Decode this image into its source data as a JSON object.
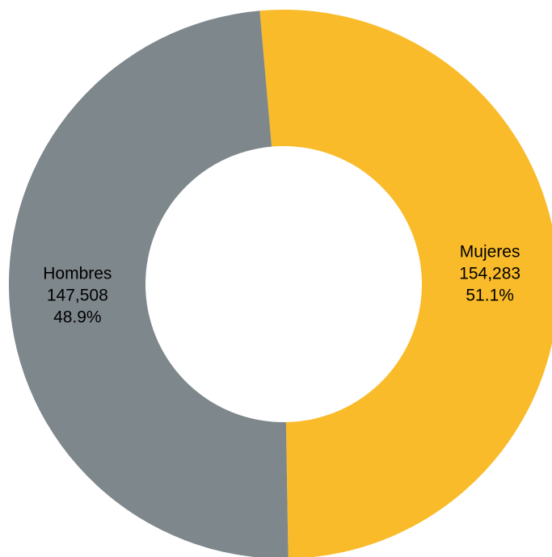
{
  "chart_data": {
    "type": "pie",
    "donut": true,
    "title": "",
    "legend": "none",
    "slices": [
      {
        "label": "Mujeres",
        "value": 154283,
        "value_label": "154,283",
        "percent": 51.1,
        "percent_label": "51.1%",
        "color": "#F9BB29"
      },
      {
        "label": "Hombres",
        "value": 147508,
        "value_label": "147,508",
        "percent": 48.9,
        "percent_label": "48.9%",
        "color": "#7E878C"
      }
    ]
  }
}
